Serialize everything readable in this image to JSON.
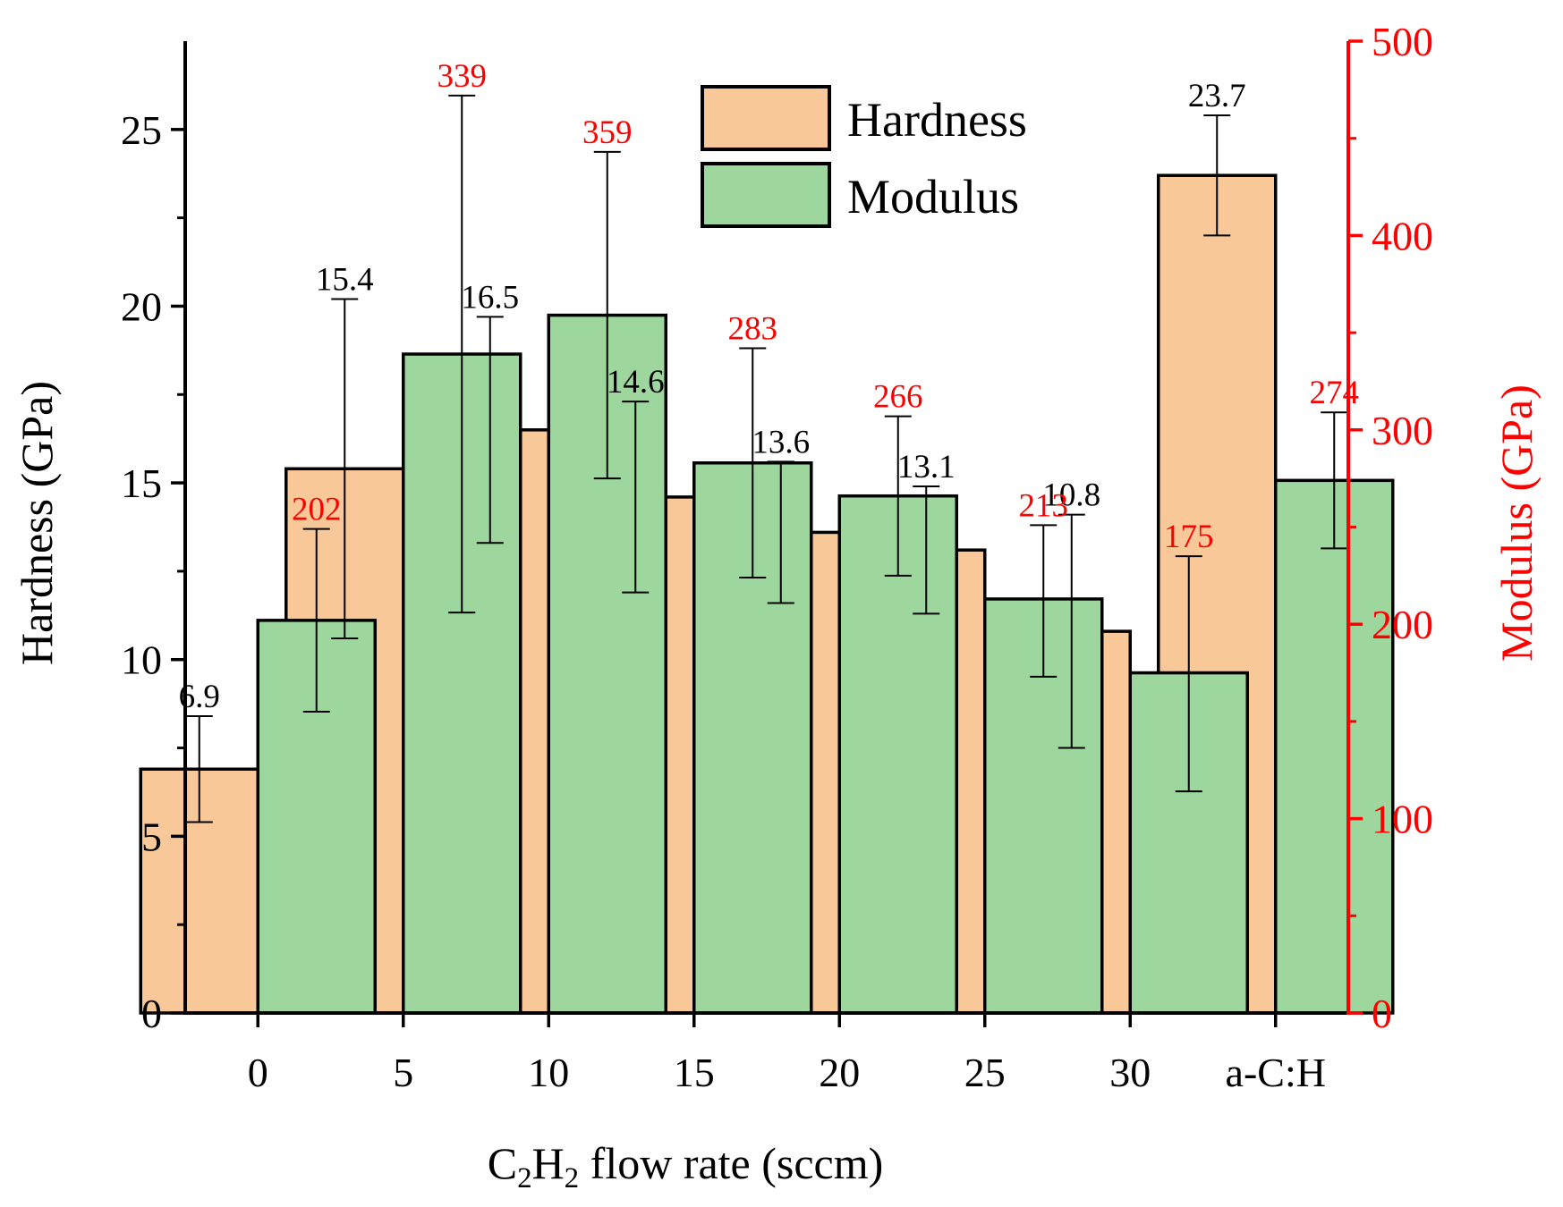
{
  "chart_data": {
    "type": "bar",
    "categories": [
      "0",
      "5",
      "10",
      "15",
      "20",
      "25",
      "30",
      "a-C:H"
    ],
    "series": [
      {
        "name": "Hardness",
        "axis": "left",
        "color": "#F9C899",
        "values": [
          6.9,
          15.4,
          16.5,
          14.6,
          13.6,
          13.1,
          10.8,
          23.7
        ],
        "error_low": [
          5.4,
          10.6,
          13.3,
          11.9,
          11.6,
          11.3,
          7.5,
          22.0
        ],
        "error_high": [
          8.4,
          20.2,
          19.7,
          17.3,
          15.6,
          14.9,
          14.1,
          25.4
        ],
        "labels": [
          "6.9",
          "15.4",
          "16.5",
          "14.6",
          "13.6",
          "13.1",
          "10.8",
          "23.7"
        ],
        "label_color": "#000000"
      },
      {
        "name": "Modulus",
        "axis": "right",
        "color": "#9ED79E",
        "values": [
          202,
          339,
          359,
          283,
          266,
          213,
          175,
          274
        ],
        "error_low": [
          155,
          206,
          275,
          224,
          225,
          173,
          114,
          239
        ],
        "error_high": [
          249,
          472,
          443,
          342,
          307,
          251,
          235,
          309
        ],
        "labels": [
          "202",
          "339",
          "359",
          "283",
          "266",
          "213",
          "175",
          "274"
        ],
        "label_color": "#FF0000"
      }
    ],
    "xlabel": "C2H2 flow rate (sccm)",
    "xlabel_parts": {
      "c": "C",
      "sub1": "2",
      "h": "H",
      "sub2": "2",
      "rest": " flow rate (sccm)"
    },
    "ylabel": "Hardness (GPa)",
    "y2label": "Modulus (GPa)",
    "ylim": [
      0,
      27.5
    ],
    "y2lim": [
      0,
      500
    ],
    "yticks": [
      0,
      5,
      10,
      15,
      20,
      25
    ],
    "y2ticks": [
      0,
      100,
      200,
      300,
      400,
      500
    ],
    "left_axis_color": "#000000",
    "right_axis_color": "#FF0000",
    "legend": [
      "Hardness",
      "Modulus"
    ],
    "legend_position": "top-center",
    "grid": false
  }
}
